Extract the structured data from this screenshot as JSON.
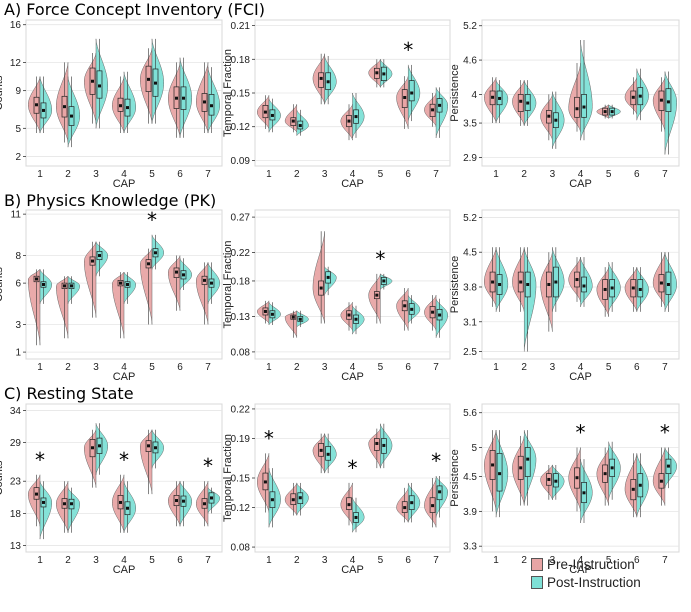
{
  "colors": {
    "pre": "#E8A5A5",
    "post": "#7EE0D6",
    "outline": "#666666"
  },
  "sections": [
    {
      "title": "A) Force Concept Inventory (FCI)"
    },
    {
      "title": "B) Physics Knowledge (PK)"
    },
    {
      "title": "C) Resting State"
    }
  ],
  "legend": {
    "pre": "Pre-Instruction",
    "post": "Post-Instruction"
  },
  "chart_data": [
    {
      "type": "violin",
      "section": "A",
      "ylabel": "Counts",
      "xlabel": "CAP",
      "categories": [
        "1",
        "2",
        "3",
        "4",
        "5",
        "6",
        "7"
      ],
      "ylim": [
        1,
        16.5
      ],
      "yticks": [
        2,
        5,
        9,
        12,
        16
      ],
      "significant": [],
      "pre": {
        "median": [
          7.5,
          7.3,
          10,
          7.4,
          10.2,
          8.2,
          7.8
        ],
        "q1": [
          6.6,
          6.2,
          8.6,
          6.8,
          8.9,
          7.1,
          6.8
        ],
        "q3": [
          8.3,
          8.4,
          11.4,
          8.2,
          11.6,
          9.4,
          8.7
        ],
        "min": [
          4.5,
          3.5,
          5.5,
          4.5,
          5.5,
          4,
          4.5
        ],
        "max": [
          10.5,
          12,
          13,
          10.5,
          13.5,
          12,
          12
        ]
      },
      "post": {
        "median": [
          6.9,
          6.3,
          9.5,
          7.2,
          9.8,
          8.2,
          7.4
        ],
        "q1": [
          6.1,
          5.3,
          8.2,
          6.3,
          8.4,
          7,
          6.4
        ],
        "q3": [
          7.7,
          7.3,
          11.1,
          8.1,
          11.3,
          9.4,
          8.6
        ],
        "min": [
          4.5,
          3,
          5,
          4.5,
          5.5,
          4,
          4.5
        ],
        "max": [
          10.5,
          10.5,
          14.5,
          11,
          14.5,
          12.5,
          11.5
        ]
      }
    },
    {
      "type": "violin",
      "section": "A",
      "ylabel": "Temporal Fraction",
      "xlabel": "CAP",
      "categories": [
        "1",
        "2",
        "3",
        "4",
        "5",
        "6",
        "7"
      ],
      "ylim": [
        0.085,
        0.215
      ],
      "yticks": [
        0.09,
        0.12,
        0.15,
        0.18,
        0.21
      ],
      "significant": [
        "6"
      ],
      "pre": {
        "median": [
          0.133,
          0.125,
          0.163,
          0.125,
          0.168,
          0.146,
          0.135
        ],
        "q1": [
          0.128,
          0.121,
          0.155,
          0.12,
          0.163,
          0.137,
          0.129
        ],
        "q3": [
          0.139,
          0.128,
          0.168,
          0.13,
          0.172,
          0.153,
          0.14
        ],
        "min": [
          0.118,
          0.115,
          0.14,
          0.108,
          0.155,
          0.118,
          0.12
        ],
        "max": [
          0.148,
          0.14,
          0.185,
          0.14,
          0.18,
          0.165,
          0.15
        ]
      },
      "post": {
        "median": [
          0.13,
          0.121,
          0.16,
          0.129,
          0.167,
          0.15,
          0.139
        ],
        "q1": [
          0.126,
          0.118,
          0.153,
          0.123,
          0.161,
          0.143,
          0.133
        ],
        "q3": [
          0.135,
          0.125,
          0.168,
          0.135,
          0.173,
          0.161,
          0.145
        ],
        "min": [
          0.115,
          0.112,
          0.14,
          0.11,
          0.155,
          0.125,
          0.11
        ],
        "max": [
          0.145,
          0.135,
          0.183,
          0.15,
          0.18,
          0.175,
          0.155
        ]
      }
    },
    {
      "type": "violin",
      "section": "A",
      "ylabel": "Persistence",
      "xlabel": "CAP",
      "categories": [
        "1",
        "2",
        "3",
        "4",
        "5",
        "6",
        "7"
      ],
      "ylim": [
        2.75,
        5.3
      ],
      "yticks": [
        2.9,
        3.5,
        4.0,
        4.6,
        5.2
      ],
      "significant": [],
      "pre": {
        "median": [
          3.95,
          3.88,
          3.62,
          3.75,
          3.7,
          3.95,
          3.9
        ],
        "q1": [
          3.82,
          3.7,
          3.5,
          3.6,
          3.64,
          3.82,
          3.72
        ],
        "q3": [
          4.06,
          4.0,
          3.72,
          3.95,
          3.76,
          4.06,
          4.06
        ],
        "min": [
          3.5,
          3.45,
          3.2,
          3.35,
          3.58,
          3.65,
          3.35
        ],
        "max": [
          4.3,
          4.25,
          4.0,
          4.55,
          3.82,
          4.3,
          4.3
        ]
      },
      "post": {
        "median": [
          3.93,
          3.85,
          3.55,
          3.78,
          3.7,
          3.97,
          3.87
        ],
        "q1": [
          3.82,
          3.72,
          3.42,
          3.6,
          3.64,
          3.82,
          3.7
        ],
        "q3": [
          4.06,
          4.0,
          3.68,
          4.0,
          3.76,
          4.12,
          4.1
        ],
        "min": [
          3.5,
          3.45,
          3.05,
          3.2,
          3.58,
          3.55,
          2.95
        ],
        "max": [
          4.25,
          4.25,
          4.05,
          4.95,
          3.82,
          4.45,
          4.4
        ]
      }
    },
    {
      "type": "violin",
      "section": "B",
      "ylabel": "Counts",
      "xlabel": "CAP",
      "categories": [
        "1",
        "2",
        "3",
        "4",
        "5",
        "6",
        "7"
      ],
      "ylim": [
        0.5,
        11.3
      ],
      "yticks": [
        1,
        3,
        6,
        8,
        11
      ],
      "significant": [
        "5"
      ],
      "pre": {
        "median": [
          6.3,
          5.8,
          7.6,
          6.0,
          7.4,
          6.8,
          6.2
        ],
        "q1": [
          6.1,
          5.6,
          7.3,
          5.8,
          7.1,
          6.4,
          5.9
        ],
        "q3": [
          6.5,
          6.0,
          7.9,
          6.2,
          7.7,
          7.1,
          6.5
        ],
        "min": [
          1.5,
          2,
          3.5,
          2,
          3,
          4,
          3
        ],
        "max": [
          7,
          6.5,
          9,
          6.8,
          8.5,
          8,
          7.5
        ]
      },
      "post": {
        "median": [
          5.9,
          5.8,
          8.0,
          5.9,
          8.2,
          6.6,
          6.0
        ],
        "q1": [
          5.7,
          5.6,
          7.7,
          5.7,
          7.9,
          6.3,
          5.7
        ],
        "q3": [
          6.1,
          6.0,
          8.3,
          6.1,
          8.5,
          6.9,
          6.3
        ],
        "min": [
          4.5,
          4.5,
          6.5,
          4.5,
          7,
          5.5,
          4.5
        ],
        "max": [
          7,
          6.5,
          9,
          6.8,
          9.5,
          7.8,
          7.5
        ]
      }
    },
    {
      "type": "violin",
      "section": "B",
      "ylabel": "Temporal Fraction",
      "xlabel": "CAP",
      "categories": [
        "1",
        "2",
        "3",
        "4",
        "5",
        "6",
        "7"
      ],
      "ylim": [
        0.07,
        0.28
      ],
      "yticks": [
        0.08,
        0.13,
        0.18,
        0.22,
        0.27
      ],
      "significant": [
        "5"
      ],
      "pre": {
        "median": [
          0.137,
          0.129,
          0.17,
          0.132,
          0.16,
          0.145,
          0.136
        ],
        "q1": [
          0.132,
          0.126,
          0.16,
          0.126,
          0.155,
          0.138,
          0.128
        ],
        "q3": [
          0.142,
          0.132,
          0.18,
          0.138,
          0.165,
          0.152,
          0.144
        ],
        "min": [
          0.12,
          0.1,
          0.12,
          0.11,
          0.12,
          0.11,
          0.11
        ],
        "max": [
          0.152,
          0.138,
          0.25,
          0.15,
          0.19,
          0.17,
          0.16
        ]
      },
      "post": {
        "median": [
          0.133,
          0.126,
          0.185,
          0.126,
          0.18,
          0.14,
          0.132
        ],
        "q1": [
          0.128,
          0.123,
          0.177,
          0.12,
          0.175,
          0.133,
          0.125
        ],
        "q3": [
          0.138,
          0.13,
          0.193,
          0.132,
          0.185,
          0.148,
          0.14
        ],
        "min": [
          0.118,
          0.115,
          0.16,
          0.105,
          0.168,
          0.12,
          0.1
        ],
        "max": [
          0.15,
          0.138,
          0.2,
          0.145,
          0.19,
          0.16,
          0.155
        ]
      }
    },
    {
      "type": "violin",
      "section": "B",
      "ylabel": "Persistence",
      "xlabel": "CAP",
      "categories": [
        "1",
        "2",
        "3",
        "4",
        "5",
        "6",
        "7"
      ],
      "ylim": [
        2.35,
        5.35
      ],
      "yticks": [
        2.5,
        3.1,
        3.8,
        4.5,
        5.2
      ],
      "significant": [],
      "pre": {
        "median": [
          3.9,
          3.9,
          3.85,
          3.95,
          3.75,
          3.78,
          3.88
        ],
        "q1": [
          3.7,
          3.7,
          3.6,
          3.8,
          3.55,
          3.6,
          3.7
        ],
        "q3": [
          4.1,
          4.1,
          4.1,
          4.1,
          3.95,
          3.95,
          4.05
        ],
        "min": [
          3.4,
          3.3,
          2.9,
          3.5,
          3.2,
          3.3,
          3.4
        ],
        "max": [
          4.6,
          4.6,
          4.5,
          4.4,
          4.2,
          4.2,
          4.5
        ]
      },
      "post": {
        "median": [
          3.85,
          3.85,
          3.9,
          3.82,
          3.78,
          3.75,
          3.85
        ],
        "q1": [
          3.65,
          3.6,
          3.6,
          3.7,
          3.6,
          3.6,
          3.65
        ],
        "q3": [
          4.05,
          4.1,
          4.2,
          4.0,
          3.95,
          3.95,
          4.1
        ],
        "min": [
          3.3,
          2.5,
          3.3,
          3.4,
          3.3,
          3.3,
          3.3
        ],
        "max": [
          4.6,
          4.6,
          4.6,
          4.4,
          4.3,
          4.2,
          4.5
        ]
      }
    },
    {
      "type": "violin",
      "section": "C",
      "ylabel": "Counts",
      "xlabel": "CAP",
      "categories": [
        "1",
        "2",
        "3",
        "4",
        "5",
        "6",
        "7"
      ],
      "ylim": [
        12,
        35
      ],
      "yticks": [
        13,
        18,
        23,
        29,
        34
      ],
      "significant": [
        "1",
        "4",
        "7"
      ],
      "pre": {
        "median": [
          21,
          19.5,
          28.2,
          19.7,
          28.5,
          20,
          19.5
        ],
        "q1": [
          20.2,
          18.8,
          26.8,
          18.7,
          27.6,
          19.2,
          18.8
        ],
        "q3": [
          22,
          20.3,
          29.5,
          20.8,
          29.3,
          20.8,
          20.3
        ],
        "min": [
          16,
          15,
          22,
          15,
          21,
          16,
          16
        ],
        "max": [
          24,
          23,
          31,
          24,
          31,
          23,
          23
        ]
      },
      "post": {
        "median": [
          19.7,
          19.5,
          28.5,
          18.8,
          28.2,
          19.9,
          20.4
        ],
        "q1": [
          19,
          18.7,
          27.3,
          17.8,
          27.4,
          19.1,
          19.6
        ],
        "q3": [
          20.4,
          20.2,
          29.7,
          19.8,
          29.1,
          20.7,
          21.2
        ],
        "min": [
          14,
          15,
          24,
          15,
          25,
          16,
          18
        ],
        "max": [
          23,
          22,
          32,
          23,
          31,
          23,
          22
        ]
      }
    },
    {
      "type": "violin",
      "section": "C",
      "ylabel": "Temporal Fraction",
      "xlabel": "CAP",
      "categories": [
        "1",
        "2",
        "3",
        "4",
        "5",
        "6",
        "7"
      ],
      "ylim": [
        0.075,
        0.225
      ],
      "yticks": [
        0.08,
        0.12,
        0.15,
        0.19,
        0.22
      ],
      "significant": [
        "1",
        "4",
        "7"
      ],
      "pre": {
        "median": [
          0.146,
          0.128,
          0.178,
          0.123,
          0.185,
          0.12,
          0.122
        ],
        "q1": [
          0.138,
          0.123,
          0.172,
          0.118,
          0.178,
          0.115,
          0.115
        ],
        "q3": [
          0.155,
          0.134,
          0.185,
          0.13,
          0.19,
          0.126,
          0.13
        ],
        "min": [
          0.115,
          0.112,
          0.155,
          0.102,
          0.16,
          0.105,
          0.1
        ],
        "max": [
          0.175,
          0.145,
          0.195,
          0.145,
          0.2,
          0.14,
          0.15
        ]
      },
      "post": {
        "median": [
          0.128,
          0.13,
          0.174,
          0.11,
          0.183,
          0.125,
          0.136
        ],
        "q1": [
          0.12,
          0.124,
          0.168,
          0.105,
          0.175,
          0.118,
          0.128
        ],
        "q3": [
          0.136,
          0.135,
          0.182,
          0.115,
          0.19,
          0.132,
          0.142
        ],
        "min": [
          0.1,
          0.112,
          0.155,
          0.095,
          0.16,
          0.105,
          0.11
        ],
        "max": [
          0.16,
          0.145,
          0.195,
          0.13,
          0.205,
          0.145,
          0.152
        ]
      }
    },
    {
      "type": "violin",
      "section": "C",
      "ylabel": "Persistence",
      "xlabel": "CAP",
      "categories": [
        "1",
        "2",
        "3",
        "4",
        "5",
        "6",
        "7"
      ],
      "ylim": [
        3.2,
        5.75
      ],
      "yticks": [
        3.3,
        3.9,
        4.5,
        5.0,
        5.6
      ],
      "significant": [
        "4",
        "7"
      ],
      "pre": {
        "median": [
          4.7,
          4.65,
          4.45,
          4.48,
          4.55,
          4.28,
          4.42
        ],
        "q1": [
          4.45,
          4.45,
          4.35,
          4.3,
          4.4,
          4.1,
          4.3
        ],
        "q3": [
          4.95,
          4.85,
          4.55,
          4.65,
          4.7,
          4.45,
          4.55
        ],
        "min": [
          3.9,
          4.0,
          4.1,
          3.9,
          4.0,
          3.8,
          4.0
        ],
        "max": [
          5.3,
          5.2,
          4.7,
          5.0,
          5.0,
          4.9,
          5.0
        ]
      },
      "post": {
        "median": [
          4.55,
          4.8,
          4.42,
          4.22,
          4.65,
          4.35,
          4.68
        ],
        "q1": [
          4.25,
          4.5,
          4.32,
          4.05,
          4.5,
          4.15,
          4.55
        ],
        "q3": [
          4.9,
          5.0,
          4.55,
          4.4,
          4.8,
          4.55,
          4.8
        ],
        "min": [
          3.8,
          4.0,
          4.1,
          3.7,
          4.1,
          3.8,
          4.3
        ],
        "max": [
          5.3,
          5.3,
          4.7,
          4.8,
          5.1,
          4.9,
          5.0
        ]
      }
    }
  ]
}
